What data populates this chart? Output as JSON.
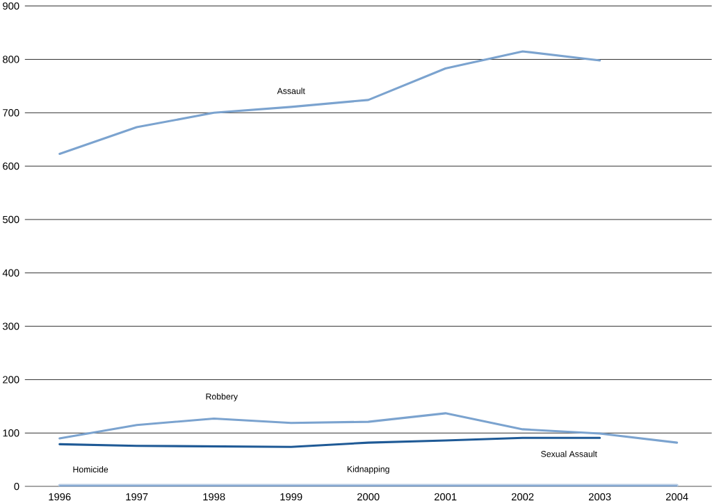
{
  "chart_data": {
    "type": "line",
    "categories": [
      "1996",
      "1997",
      "1998",
      "1999",
      "2000",
      "2001",
      "2002",
      "2003",
      "2004"
    ],
    "ylim": [
      0,
      900
    ],
    "yticks": [
      0,
      100,
      200,
      300,
      400,
      500,
      600,
      700,
      800,
      900
    ],
    "grid": "y",
    "series": [
      {
        "name": "Assault",
        "color": "#7ba3cf",
        "values": [
          623,
          673,
          700,
          711,
          724,
          783,
          815,
          798,
          null
        ]
      },
      {
        "name": "Robbery",
        "color": "#7ba3cf",
        "values": [
          90,
          115,
          127,
          119,
          121,
          137,
          107,
          99,
          82
        ]
      },
      {
        "name": "Sexual Assault",
        "color": "#1f5a96",
        "values": [
          79,
          76,
          75,
          74,
          82,
          86,
          91,
          91,
          null
        ]
      },
      {
        "name": "Homicide",
        "color": "#b8cce4",
        "values": [
          2,
          2,
          2,
          2,
          2,
          2,
          2,
          2,
          2
        ]
      },
      {
        "name": "Kidnapping",
        "color": "#4f81bd",
        "values": [
          1,
          1,
          1,
          1,
          1,
          1,
          1,
          1,
          1
        ]
      }
    ]
  }
}
